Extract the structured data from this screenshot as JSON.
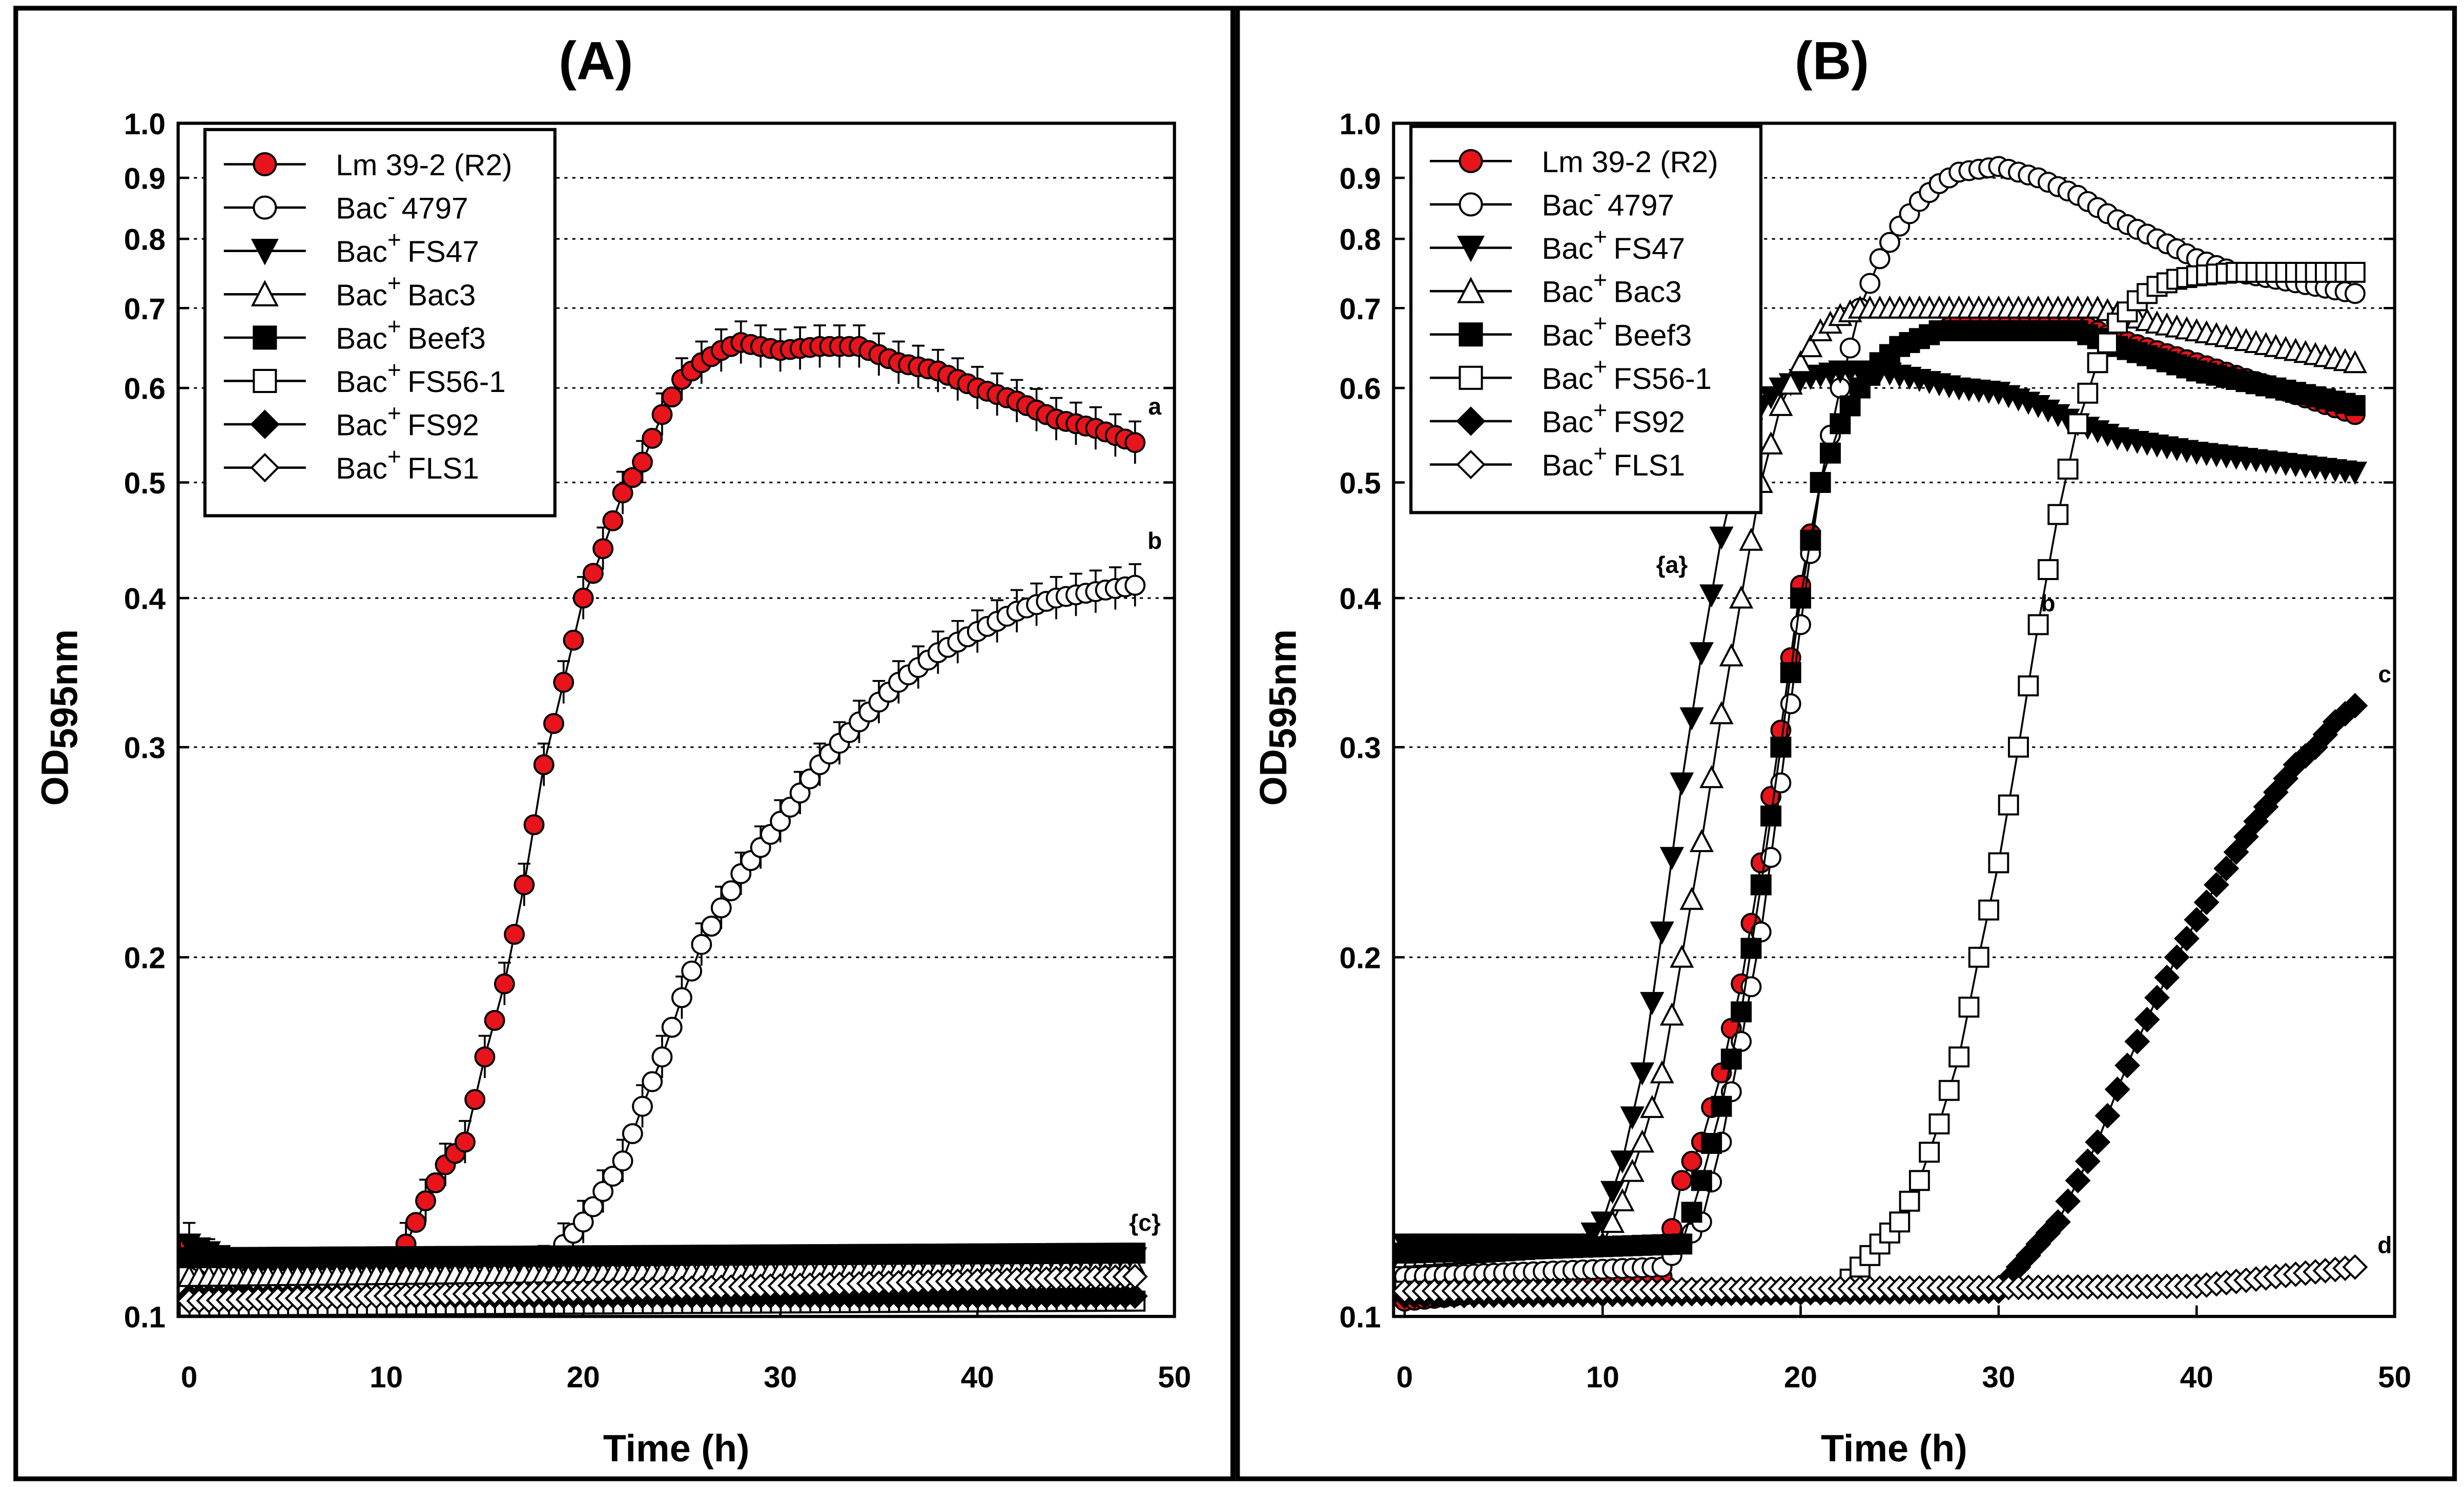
{
  "chart_data": [
    {
      "type": "line",
      "title": "(A)",
      "xlabel": "Time (h)",
      "ylabel": "OD",
      "ylabel_sub": "595nm",
      "xlim": [
        0,
        50
      ],
      "ylim": [
        0.1,
        1.0
      ],
      "yscale": "log",
      "grid": "horizontal-dotted",
      "legend": "top-left",
      "xticks": [
        "0",
        "10",
        "20",
        "30",
        "40",
        "50"
      ],
      "yticks": [
        "0.1",
        "0.2",
        "0.3",
        "0.4",
        "0.5",
        "0.6",
        "0.7",
        "0.8",
        "0.9",
        "1.0"
      ],
      "annotations": [
        {
          "text": "a",
          "x": 49,
          "y": 0.57
        },
        {
          "text": "b",
          "x": 49,
          "y": 0.44
        },
        {
          "text": "{c}",
          "x": 48.5,
          "y": 0.118
        }
      ],
      "series": [
        {
          "name": "Lm 39-2 (R2)",
          "marker": "circle",
          "fill": "#e8141b",
          "points": [
            [
              0,
              0.115
            ],
            [
              2,
              0.108
            ],
            [
              5,
              0.106
            ],
            [
              10,
              0.106
            ],
            [
              11,
              0.115
            ],
            [
              12,
              0.125
            ],
            [
              13,
              0.134
            ],
            [
              14,
              0.14
            ],
            [
              15,
              0.165
            ],
            [
              16,
              0.19
            ],
            [
              17,
              0.23
            ],
            [
              18,
              0.29
            ],
            [
              19,
              0.34
            ],
            [
              20,
              0.4
            ],
            [
              21,
              0.44
            ],
            [
              22,
              0.49
            ],
            [
              23,
              0.52
            ],
            [
              24,
              0.57
            ],
            [
              25,
              0.61
            ],
            [
              26,
              0.63
            ],
            [
              27,
              0.645
            ],
            [
              28,
              0.655
            ],
            [
              30,
              0.645
            ],
            [
              32,
              0.65
            ],
            [
              34,
              0.65
            ],
            [
              36,
              0.63
            ],
            [
              38,
              0.62
            ],
            [
              40,
              0.6
            ],
            [
              42,
              0.585
            ],
            [
              44,
              0.565
            ],
            [
              46,
              0.555
            ],
            [
              48,
              0.54
            ]
          ]
        },
        {
          "name": "Bac- 4797",
          "marker": "circle",
          "fill": "#ffffff",
          "points": [
            [
              0,
              0.112
            ],
            [
              5,
              0.105
            ],
            [
              16,
              0.106
            ],
            [
              18,
              0.11
            ],
            [
              20,
              0.12
            ],
            [
              22,
              0.135
            ],
            [
              23,
              0.15
            ],
            [
              24,
              0.165
            ],
            [
              25,
              0.185
            ],
            [
              26,
              0.205
            ],
            [
              27,
              0.22
            ],
            [
              28,
              0.235
            ],
            [
              30,
              0.26
            ],
            [
              32,
              0.29
            ],
            [
              34,
              0.315
            ],
            [
              36,
              0.34
            ],
            [
              38,
              0.36
            ],
            [
              40,
              0.375
            ],
            [
              42,
              0.39
            ],
            [
              44,
              0.4
            ],
            [
              46,
              0.405
            ],
            [
              48,
              0.41
            ]
          ]
        },
        {
          "name": "Bac+ FS47",
          "marker": "triangle-down",
          "fill": "#000000",
          "points": [
            [
              0,
              0.115
            ],
            [
              3,
              0.11
            ],
            [
              48,
              0.112
            ]
          ]
        },
        {
          "name": "Bac+ Bac3",
          "marker": "triangle-up",
          "fill": "#ffffff",
          "points": [
            [
              0,
              0.108
            ],
            [
              48,
              0.11
            ]
          ]
        },
        {
          "name": "Bac+ Beef3",
          "marker": "square",
          "fill": "#000000",
          "points": [
            [
              0,
              0.112
            ],
            [
              48,
              0.113
            ]
          ]
        },
        {
          "name": "Bac+ FS56-1",
          "marker": "square",
          "fill": "#ffffff",
          "points": [
            [
              0,
              0.102
            ],
            [
              48,
              0.103
            ]
          ]
        },
        {
          "name": "Bac+ FS92",
          "marker": "diamond",
          "fill": "#000000",
          "points": [
            [
              0,
              0.104
            ],
            [
              48,
              0.104
            ]
          ]
        },
        {
          "name": "Bac+ FLS1",
          "marker": "diamond",
          "fill": "#ffffff",
          "points": [
            [
              0,
              0.103
            ],
            [
              48,
              0.108
            ]
          ]
        }
      ]
    },
    {
      "type": "line",
      "title": "(B)",
      "xlabel": "Time (h)",
      "ylabel": "OD",
      "ylabel_sub": "595nm",
      "xlim": [
        0,
        50
      ],
      "ylim": [
        0.1,
        1.0
      ],
      "yscale": "log",
      "grid": "horizontal-dotted",
      "legend": "top-left",
      "xticks": [
        "0",
        "10",
        "20",
        "30",
        "40",
        "50"
      ],
      "yticks": [
        "0.1",
        "0.2",
        "0.3",
        "0.4",
        "0.5",
        "0.6",
        "0.7",
        "0.8",
        "0.9",
        "1.0"
      ],
      "annotations": [
        {
          "text": "{a}",
          "x": 13.5,
          "y": 0.42
        },
        {
          "text": "b",
          "x": 32.5,
          "y": 0.39
        },
        {
          "text": "c",
          "x": 49.5,
          "y": 0.34
        },
        {
          "text": "d",
          "x": 49.5,
          "y": 0.113
        }
      ],
      "series": [
        {
          "name": "Lm 39-2 (R2)",
          "marker": "circle",
          "fill": "#e8141b",
          "points": [
            [
              0,
              0.103
            ],
            [
              13,
              0.108
            ],
            [
              14,
              0.13
            ],
            [
              15,
              0.14
            ],
            [
              16,
              0.16
            ],
            [
              17,
              0.19
            ],
            [
              18,
              0.24
            ],
            [
              19,
              0.31
            ],
            [
              20,
              0.41
            ],
            [
              21,
              0.5
            ],
            [
              22,
              0.56
            ],
            [
              23,
              0.6
            ],
            [
              24,
              0.63
            ],
            [
              25,
              0.65
            ],
            [
              27,
              0.67
            ],
            [
              28,
              0.68
            ],
            [
              34,
              0.68
            ],
            [
              36,
              0.66
            ],
            [
              40,
              0.63
            ],
            [
              44,
              0.6
            ],
            [
              48,
              0.57
            ]
          ]
        },
        {
          "name": "Bac- 4797",
          "marker": "circle",
          "fill": "#ffffff",
          "points": [
            [
              0,
              0.108
            ],
            [
              13,
              0.11
            ],
            [
              14,
              0.115
            ],
            [
              15,
              0.12
            ],
            [
              16,
              0.14
            ],
            [
              17,
              0.17
            ],
            [
              18,
              0.21
            ],
            [
              19,
              0.28
            ],
            [
              20,
              0.38
            ],
            [
              21,
              0.5
            ],
            [
              22,
              0.6
            ],
            [
              23,
              0.7
            ],
            [
              24,
              0.77
            ],
            [
              25,
              0.82
            ],
            [
              26,
              0.86
            ],
            [
              27,
              0.89
            ],
            [
              28,
              0.91
            ],
            [
              30,
              0.92
            ],
            [
              32,
              0.9
            ],
            [
              34,
              0.87
            ],
            [
              36,
              0.83
            ],
            [
              38,
              0.8
            ],
            [
              40,
              0.77
            ],
            [
              42,
              0.75
            ],
            [
              44,
              0.74
            ],
            [
              46,
              0.73
            ],
            [
              48,
              0.72
            ]
          ]
        },
        {
          "name": "Bac+ FS47",
          "marker": "triangle-down",
          "fill": "#000000",
          "points": [
            [
              0,
              0.115
            ],
            [
              9,
              0.115
            ],
            [
              10,
              0.12
            ],
            [
              11,
              0.135
            ],
            [
              12,
              0.16
            ],
            [
              13,
              0.21
            ],
            [
              14,
              0.28
            ],
            [
              15,
              0.36
            ],
            [
              16,
              0.45
            ],
            [
              17,
              0.53
            ],
            [
              18,
              0.58
            ],
            [
              19,
              0.6
            ],
            [
              20,
              0.61
            ],
            [
              22,
              0.62
            ],
            [
              24,
              0.62
            ],
            [
              26,
              0.61
            ],
            [
              28,
              0.6
            ],
            [
              30,
              0.595
            ],
            [
              32,
              0.58
            ],
            [
              34,
              0.56
            ],
            [
              36,
              0.545
            ],
            [
              40,
              0.53
            ],
            [
              44,
              0.52
            ],
            [
              48,
              0.51
            ]
          ]
        },
        {
          "name": "Bac+ Bac3",
          "marker": "triangle-up",
          "fill": "#ffffff",
          "points": [
            [
              0,
              0.112
            ],
            [
              10,
              0.115
            ],
            [
              11,
              0.125
            ],
            [
              12,
              0.14
            ],
            [
              13,
              0.16
            ],
            [
              14,
              0.2
            ],
            [
              15,
              0.25
            ],
            [
              16,
              0.32
            ],
            [
              17,
              0.4
            ],
            [
              18,
              0.5
            ],
            [
              19,
              0.58
            ],
            [
              20,
              0.63
            ],
            [
              21,
              0.67
            ],
            [
              22,
              0.69
            ],
            [
              23,
              0.7
            ],
            [
              35,
              0.7
            ],
            [
              38,
              0.68
            ],
            [
              42,
              0.66
            ],
            [
              45,
              0.645
            ],
            [
              48,
              0.63
            ]
          ]
        },
        {
          "name": "Bac+ Beef3",
          "marker": "square",
          "fill": "#000000",
          "points": [
            [
              0,
              0.113
            ],
            [
              14,
              0.115
            ],
            [
              15,
              0.13
            ],
            [
              16,
              0.15
            ],
            [
              17,
              0.18
            ],
            [
              18,
              0.23
            ],
            [
              19,
              0.3
            ],
            [
              20,
              0.4
            ],
            [
              21,
              0.5
            ],
            [
              22,
              0.56
            ],
            [
              23,
              0.6
            ],
            [
              24,
              0.63
            ],
            [
              25,
              0.65
            ],
            [
              26,
              0.66
            ],
            [
              27,
              0.67
            ],
            [
              34,
              0.67
            ],
            [
              36,
              0.65
            ],
            [
              40,
              0.62
            ],
            [
              44,
              0.6
            ],
            [
              48,
              0.58
            ]
          ]
        },
        {
          "name": "Bac+ FS56-1",
          "marker": "square",
          "fill": "#ffffff",
          "points": [
            [
              0,
              0.105
            ],
            [
              22,
              0.105
            ],
            [
              23,
              0.11
            ],
            [
              24,
              0.115
            ],
            [
              25,
              0.12
            ],
            [
              26,
              0.13
            ],
            [
              27,
              0.145
            ],
            [
              28,
              0.165
            ],
            [
              29,
              0.2
            ],
            [
              30,
              0.24
            ],
            [
              31,
              0.3
            ],
            [
              32,
              0.38
            ],
            [
              33,
              0.47
            ],
            [
              34,
              0.56
            ],
            [
              35,
              0.63
            ],
            [
              36,
              0.68
            ],
            [
              37,
              0.71
            ],
            [
              38,
              0.73
            ],
            [
              39,
              0.74
            ],
            [
              40,
              0.745
            ],
            [
              42,
              0.75
            ],
            [
              48,
              0.75
            ]
          ]
        },
        {
          "name": "Bac+ FS92",
          "marker": "diamond",
          "fill": "#000000",
          "points": [
            [
              0,
              0.104
            ],
            [
              30,
              0.105
            ],
            [
              31,
              0.11
            ],
            [
              32,
              0.115
            ],
            [
              33,
              0.12
            ],
            [
              34,
              0.13
            ],
            [
              35,
              0.14
            ],
            [
              36,
              0.155
            ],
            [
              37,
              0.17
            ],
            [
              38,
              0.185
            ],
            [
              39,
              0.2
            ],
            [
              40,
              0.215
            ],
            [
              41,
              0.23
            ],
            [
              42,
              0.245
            ],
            [
              43,
              0.26
            ],
            [
              44,
              0.275
            ],
            [
              45,
              0.29
            ],
            [
              46,
              0.3
            ],
            [
              47,
              0.315
            ],
            [
              48,
              0.325
            ]
          ]
        },
        {
          "name": "Bac+ FLS1",
          "marker": "diamond",
          "fill": "#ffffff",
          "points": [
            [
              0,
              0.105
            ],
            [
              40,
              0.106
            ],
            [
              48,
              0.11
            ]
          ]
        }
      ]
    }
  ],
  "legend_labels": [
    {
      "prefix": "Lm 39-2 (R2)",
      "sup": "",
      "name": ""
    },
    {
      "prefix": "Bac",
      "sup": "-",
      "name": "4797"
    },
    {
      "prefix": "Bac",
      "sup": "+",
      "name": "FS47"
    },
    {
      "prefix": "Bac",
      "sup": "+",
      "name": "Bac3"
    },
    {
      "prefix": "Bac",
      "sup": "+",
      "name": "Beef3"
    },
    {
      "prefix": "Bac",
      "sup": "+",
      "name": "FS56-1"
    },
    {
      "prefix": "Bac",
      "sup": "+",
      "name": "FS92"
    },
    {
      "prefix": "Bac",
      "sup": "+",
      "name": "FLS1"
    }
  ]
}
